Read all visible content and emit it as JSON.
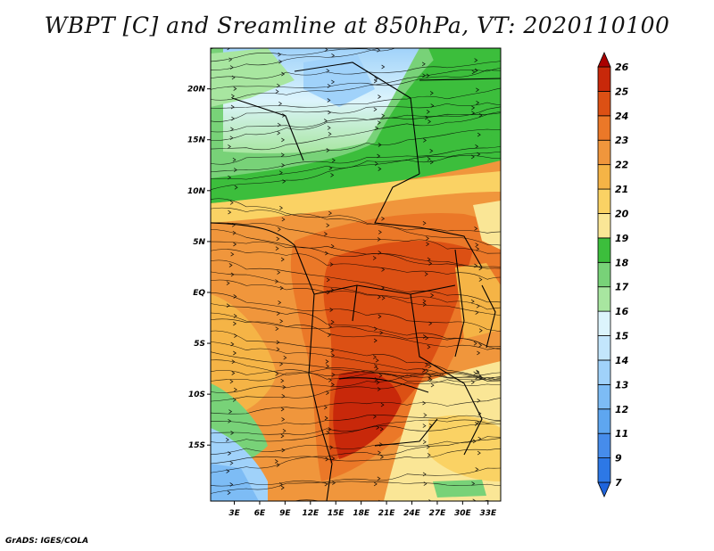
{
  "title": "WBPT [C] and Sreamline at 850hPa, VT: 2020110100",
  "credit": "GrADS: IGES/COLA",
  "map": {
    "lat_labels": [
      "20N",
      "15N",
      "10N",
      "5N",
      "EQ",
      "5S",
      "10S",
      "15S"
    ],
    "lon_labels": [
      "3E",
      "6E",
      "9E",
      "12E",
      "15E",
      "18E",
      "21E",
      "24E",
      "27E",
      "30E",
      "33E"
    ],
    "lat_range": [
      -20.5,
      24
    ],
    "lon_range": [
      0.2,
      34.5
    ]
  },
  "colorbar": {
    "labels": [
      "7",
      "9",
      "11",
      "12",
      "13",
      "14",
      "15",
      "16",
      "17",
      "18",
      "19",
      "20",
      "21",
      "22",
      "23",
      "24",
      "25",
      "26"
    ],
    "colors": [
      "#1e64dc",
      "#2d78e6",
      "#468ceb",
      "#5ea6f0",
      "#7dbcf5",
      "#a0d2fa",
      "#c3e6fc",
      "#dcf4fc",
      "#a8e6a0",
      "#78d278",
      "#3cbe3c",
      "#fae696",
      "#fad264",
      "#f5b446",
      "#f0963c",
      "#eb7828",
      "#dc5014",
      "#c8280a",
      "#aa0000"
    ]
  }
}
